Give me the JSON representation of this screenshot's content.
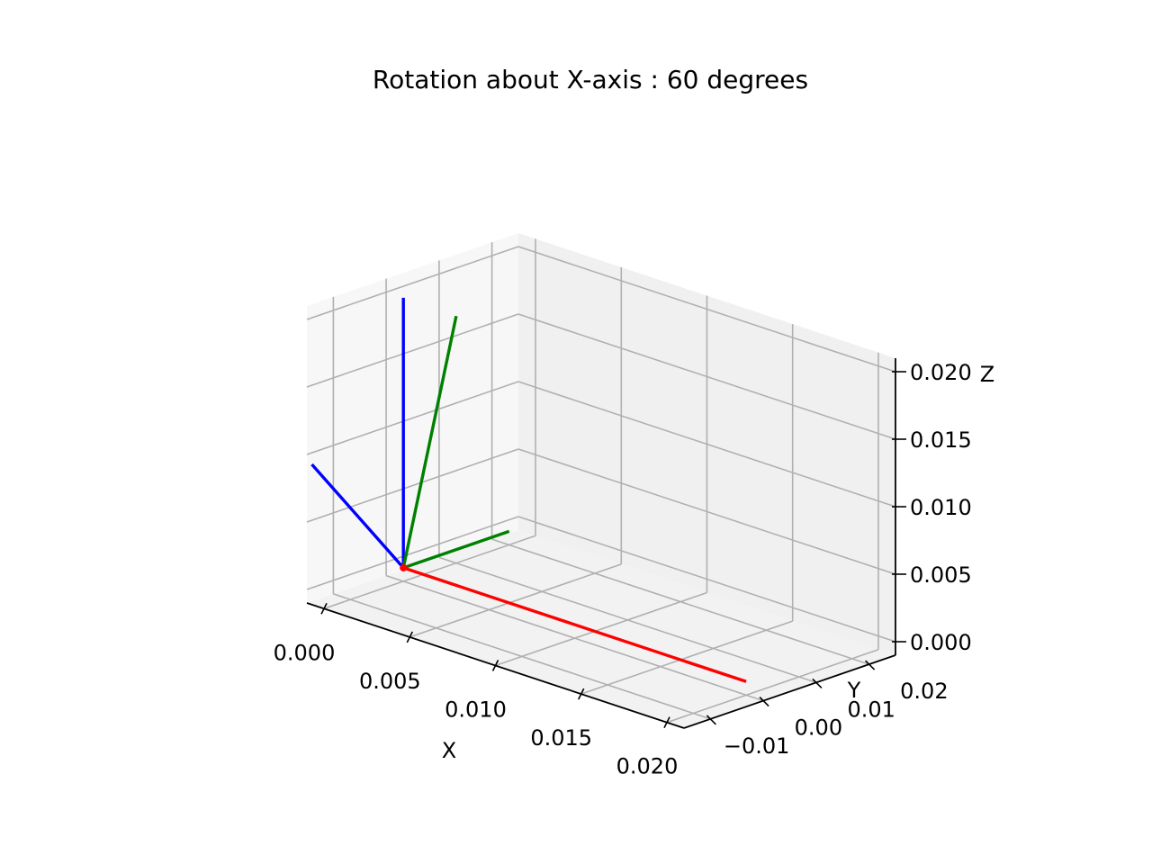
{
  "chart_data": {
    "type": "line",
    "projection": "3d",
    "title": "Rotation about X-axis : 60 degrees",
    "xlabel": "X",
    "ylabel": "Y",
    "zlabel": "Z",
    "x_ticks": [
      "0.000",
      "0.005",
      "0.010",
      "0.015",
      "0.020"
    ],
    "y_ticks": [
      "−0.01",
      "0.00",
      "0.01",
      "0.02"
    ],
    "z_ticks": [
      "0.000",
      "0.005",
      "0.010",
      "0.015",
      "0.020"
    ],
    "xlim": [
      -0.001,
      0.021
    ],
    "ylim": [
      -0.015,
      0.025
    ],
    "zlim": [
      -0.001,
      0.021
    ],
    "grid": true,
    "series": [
      {
        "color": "#ff0000",
        "x": [
          0,
          0.02
        ],
        "y": [
          0,
          0
        ],
        "z": [
          0,
          0
        ]
      },
      {
        "color": "#0000ff",
        "x": [
          0,
          0
        ],
        "y": [
          0,
          -0.0173
        ],
        "z": [
          0,
          0.01
        ]
      },
      {
        "color": "#0000ff",
        "x": [
          0,
          0
        ],
        "y": [
          0,
          0
        ],
        "z": [
          0,
          0.02
        ]
      },
      {
        "color": "#008000",
        "x": [
          0,
          0
        ],
        "y": [
          0,
          0.02
        ],
        "z": [
          0,
          0
        ]
      },
      {
        "color": "#008000",
        "x": [
          0,
          0
        ],
        "y": [
          0,
          0.01
        ],
        "z": [
          0,
          0.0173
        ]
      }
    ],
    "points": [
      {
        "color": "#ff0000",
        "x": 0,
        "y": 0,
        "z": 0
      }
    ]
  }
}
